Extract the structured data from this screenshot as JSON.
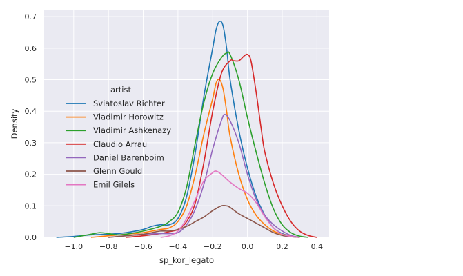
{
  "chart_data": {
    "type": "line",
    "xlabel": "sp_kor_legato",
    "ylabel": "Density",
    "xlim": [
      -1.17,
      0.47
    ],
    "ylim": [
      0,
      0.72
    ],
    "x_ticks": [
      "−1.0",
      "−0.8",
      "−0.6",
      "−0.4",
      "−0.2",
      "0.0",
      "0.2",
      "0.4"
    ],
    "x_tick_values": [
      -1.0,
      -0.8,
      -0.6,
      -0.4,
      -0.2,
      0.0,
      0.2,
      0.4
    ],
    "y_ticks": [
      "0.0",
      "0.1",
      "0.2",
      "0.3",
      "0.4",
      "0.5",
      "0.6",
      "0.7"
    ],
    "y_tick_values": [
      0.0,
      0.1,
      0.2,
      0.3,
      0.4,
      0.5,
      0.6,
      0.7
    ],
    "grid": true,
    "background": "#eaeaf2",
    "legend": {
      "title": "artist",
      "placement": "center-left"
    },
    "series": [
      {
        "name": "Sviatoslav Richter",
        "color": "#1f77b4",
        "x": [
          -1.1,
          -1.0,
          -0.9,
          -0.8,
          -0.7,
          -0.6,
          -0.55,
          -0.5,
          -0.45,
          -0.4,
          -0.35,
          -0.3,
          -0.25,
          -0.2,
          -0.18,
          -0.16,
          -0.14,
          -0.12,
          -0.1,
          -0.05,
          0.0,
          0.05,
          0.1,
          0.15,
          0.2,
          0.25,
          0.3
        ],
        "y": [
          0.0,
          0.003,
          0.008,
          0.01,
          0.015,
          0.025,
          0.035,
          0.04,
          0.04,
          0.06,
          0.13,
          0.27,
          0.45,
          0.6,
          0.66,
          0.685,
          0.67,
          0.6,
          0.5,
          0.34,
          0.22,
          0.13,
          0.07,
          0.03,
          0.012,
          0.004,
          0.0
        ]
      },
      {
        "name": "Vladimir Horowitz",
        "color": "#ff7f0e",
        "x": [
          -0.9,
          -0.8,
          -0.7,
          -0.6,
          -0.5,
          -0.45,
          -0.4,
          -0.35,
          -0.3,
          -0.25,
          -0.2,
          -0.18,
          -0.16,
          -0.14,
          -0.12,
          -0.1,
          -0.05,
          0.0,
          0.05,
          0.1,
          0.15,
          0.2,
          0.25,
          0.3
        ],
        "y": [
          0.0,
          0.005,
          0.01,
          0.015,
          0.025,
          0.03,
          0.05,
          0.1,
          0.2,
          0.33,
          0.44,
          0.49,
          0.5,
          0.47,
          0.4,
          0.32,
          0.2,
          0.12,
          0.07,
          0.04,
          0.02,
          0.01,
          0.004,
          0.0
        ]
      },
      {
        "name": "Vladimir Ashkenazy",
        "color": "#2ca02c",
        "x": [
          -1.0,
          -0.9,
          -0.85,
          -0.8,
          -0.75,
          -0.7,
          -0.6,
          -0.5,
          -0.45,
          -0.4,
          -0.35,
          -0.3,
          -0.25,
          -0.2,
          -0.15,
          -0.12,
          -0.1,
          -0.05,
          0.0,
          0.05,
          0.1,
          0.15,
          0.2,
          0.25,
          0.3,
          0.35
        ],
        "y": [
          0.0,
          0.01,
          0.015,
          0.012,
          0.008,
          0.01,
          0.02,
          0.035,
          0.05,
          0.08,
          0.16,
          0.3,
          0.43,
          0.52,
          0.57,
          0.585,
          0.58,
          0.5,
          0.38,
          0.27,
          0.17,
          0.09,
          0.04,
          0.015,
          0.004,
          0.0
        ]
      },
      {
        "name": "Claudio Arrau",
        "color": "#d62728",
        "x": [
          -0.7,
          -0.6,
          -0.5,
          -0.45,
          -0.4,
          -0.35,
          -0.3,
          -0.25,
          -0.2,
          -0.15,
          -0.1,
          -0.08,
          -0.05,
          -0.02,
          0.0,
          0.02,
          0.05,
          0.08,
          0.1,
          0.15,
          0.2,
          0.25,
          0.3,
          0.35,
          0.4
        ],
        "y": [
          0.0,
          0.005,
          0.012,
          0.018,
          0.025,
          0.05,
          0.11,
          0.24,
          0.4,
          0.52,
          0.56,
          0.56,
          0.56,
          0.575,
          0.58,
          0.56,
          0.46,
          0.34,
          0.27,
          0.17,
          0.1,
          0.05,
          0.02,
          0.006,
          0.0
        ]
      },
      {
        "name": "Daniel Barenboim",
        "color": "#9467bd",
        "x": [
          -0.8,
          -0.7,
          -0.6,
          -0.5,
          -0.45,
          -0.4,
          -0.35,
          -0.3,
          -0.25,
          -0.2,
          -0.15,
          -0.13,
          -0.1,
          -0.05,
          0.0,
          0.05,
          0.1,
          0.15,
          0.2,
          0.25,
          0.3
        ],
        "y": [
          0.0,
          0.005,
          0.01,
          0.012,
          0.012,
          0.015,
          0.04,
          0.09,
          0.17,
          0.28,
          0.37,
          0.39,
          0.37,
          0.3,
          0.2,
          0.12,
          0.07,
          0.04,
          0.02,
          0.006,
          0.0
        ]
      },
      {
        "name": "Glenn Gould",
        "color": "#8c564b",
        "x": [
          -0.8,
          -0.7,
          -0.6,
          -0.55,
          -0.5,
          -0.45,
          -0.4,
          -0.35,
          -0.3,
          -0.25,
          -0.2,
          -0.15,
          -0.12,
          -0.1,
          -0.05,
          0.0,
          0.05,
          0.1,
          0.15,
          0.2,
          0.25,
          0.3
        ],
        "y": [
          0.0,
          0.005,
          0.01,
          0.015,
          0.02,
          0.02,
          0.025,
          0.035,
          0.05,
          0.065,
          0.085,
          0.1,
          0.1,
          0.095,
          0.075,
          0.06,
          0.045,
          0.03,
          0.015,
          0.006,
          0.002,
          0.0
        ]
      },
      {
        "name": "Emil Gilels",
        "color": "#e377c2",
        "x": [
          -0.5,
          -0.45,
          -0.4,
          -0.35,
          -0.3,
          -0.25,
          -0.2,
          -0.18,
          -0.15,
          -0.1,
          -0.05,
          0.0,
          0.05,
          0.1,
          0.15,
          0.2,
          0.25,
          0.3
        ],
        "y": [
          0.0,
          0.005,
          0.02,
          0.06,
          0.12,
          0.18,
          0.205,
          0.21,
          0.2,
          0.175,
          0.155,
          0.14,
          0.11,
          0.065,
          0.03,
          0.01,
          0.003,
          0.0
        ]
      }
    ]
  }
}
